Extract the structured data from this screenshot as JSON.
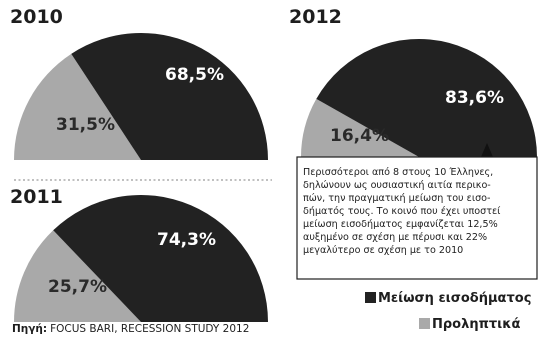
{
  "chart_data": {
    "type": "pie",
    "charts": [
      {
        "title": "2010",
        "slices": [
          {
            "series": "Μείωση εισοδήματος",
            "value": 68.5,
            "label": "68,5%"
          },
          {
            "series": "Προληπτικά",
            "value": 31.5,
            "label": "31,5%"
          }
        ]
      },
      {
        "title": "2011",
        "slices": [
          {
            "series": "Μείωση εισοδήματος",
            "value": 74.3,
            "label": "74,3%"
          },
          {
            "series": "Προληπτικά",
            "value": 25.7,
            "label": "25,7%"
          }
        ]
      },
      {
        "title": "2012",
        "slices": [
          {
            "series": "Μείωση εισοδήματος",
            "value": 83.6,
            "label": "83,6%"
          },
          {
            "series": "Προληπτικά",
            "value": 16.4,
            "label": "16,4%"
          }
        ]
      }
    ],
    "legend": [
      {
        "name": "Μείωση εισοδήματος",
        "color": "#222222"
      },
      {
        "name": "Προληπτικά",
        "color": "#a9a9a9"
      }
    ],
    "legend_position": "bottom-right"
  },
  "annotation": {
    "lines": [
      "Περισσότεροι από 8 στους 10 Έλληνες,",
      "δηλώνουν ως ουσιαστική αιτία περικο-",
      "πών, την πραγματική μείωση του εισο-",
      "δήματός τους. Το κοινό που έχει υποστεί",
      "μείωση εισοδήματος εμφανίζεται 12,5%",
      "αυξημένο σε σχέση με πέρυσι και 22%",
      "μεγαλύτερο σε σχέση με το 2010"
    ]
  },
  "source": {
    "prefix": "Πηγή:",
    "text": "FOCUS BARI, RECESSION STUDY 2012"
  },
  "colors": {
    "dark": "#222222",
    "light": "#a9a9a9",
    "light_text": "#2a2a2a",
    "dark_text": "#ffffff"
  }
}
